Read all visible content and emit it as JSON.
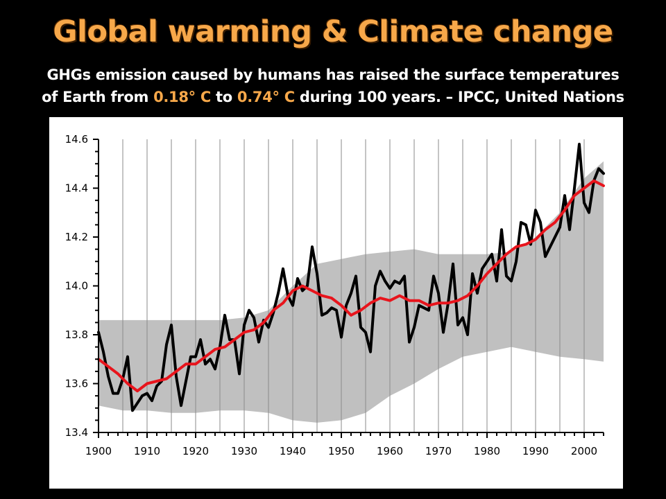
{
  "slide": {
    "title": "Global warming & Climate change",
    "subtitle_line1": "GHGs  emission caused by humans has raised the surface temperatures",
    "subtitle_line2_a": "of Earth from ",
    "subtitle_line2_v1": "0.18° C",
    "subtitle_line2_b": " to ",
    "subtitle_line2_v2": "0.74° C",
    "subtitle_line2_c": " during 100 years.  – IPCC, United Nations",
    "title_color": "#f7a84a",
    "background_color": "#000000"
  },
  "chart_data": {
    "type": "line",
    "title": "",
    "xlabel": "",
    "ylabel": "",
    "xlim": [
      1900,
      2004
    ],
    "ylim": [
      13.4,
      14.6
    ],
    "grid": true,
    "x_ticks": [
      1900,
      1910,
      1920,
      1930,
      1940,
      1950,
      1960,
      1970,
      1980,
      1990,
      2000
    ],
    "y_ticks": [
      13.4,
      13.6,
      13.8,
      14.0,
      14.2,
      14.4,
      14.6
    ],
    "y_tick_labels": [
      "13.4",
      "13.6",
      "13.8",
      "14.0",
      "14.2",
      "14.4",
      "14.6"
    ],
    "colors": {
      "annual": "#000000",
      "smoothed": "#e8141c",
      "band": "#c0c0c0"
    },
    "band": {
      "x": [
        1900,
        1905,
        1910,
        1915,
        1920,
        1925,
        1930,
        1935,
        1940,
        1945,
        1950,
        1955,
        1960,
        1965,
        1970,
        1975,
        1980,
        1985,
        1990,
        1995,
        2000,
        2004
      ],
      "upper": [
        13.86,
        13.86,
        13.86,
        13.86,
        13.86,
        13.86,
        13.87,
        13.9,
        14.0,
        14.09,
        14.11,
        14.13,
        14.14,
        14.15,
        14.13,
        14.13,
        14.13,
        14.14,
        14.2,
        14.3,
        14.44,
        14.51
      ],
      "lower": [
        13.51,
        13.49,
        13.49,
        13.48,
        13.48,
        13.49,
        13.49,
        13.48,
        13.45,
        13.44,
        13.45,
        13.48,
        13.55,
        13.6,
        13.66,
        13.71,
        13.73,
        13.75,
        13.73,
        13.71,
        13.7,
        13.69
      ]
    },
    "series": [
      {
        "kind": "annual",
        "x": [
          1900,
          1901,
          1902,
          1903,
          1904,
          1905,
          1906,
          1907,
          1908,
          1909,
          1910,
          1911,
          1912,
          1913,
          1914,
          1915,
          1916,
          1917,
          1918,
          1919,
          1920,
          1921,
          1922,
          1923,
          1924,
          1925,
          1926,
          1927,
          1928,
          1929,
          1930,
          1931,
          1932,
          1933,
          1934,
          1935,
          1936,
          1937,
          1938,
          1939,
          1940,
          1941,
          1942,
          1943,
          1944,
          1945,
          1946,
          1947,
          1948,
          1949,
          1950,
          1951,
          1952,
          1953,
          1954,
          1955,
          1956,
          1957,
          1958,
          1959,
          1960,
          1961,
          1962,
          1963,
          1964,
          1965,
          1966,
          1967,
          1968,
          1969,
          1970,
          1971,
          1972,
          1973,
          1974,
          1975,
          1976,
          1977,
          1978,
          1979,
          1980,
          1981,
          1982,
          1983,
          1984,
          1985,
          1986,
          1987,
          1988,
          1989,
          1990,
          1991,
          1992,
          1993,
          1994,
          1995,
          1996,
          1997,
          1998,
          1999,
          2000,
          2001,
          2002,
          2003,
          2004
        ],
        "values": [
          13.81,
          13.73,
          13.63,
          13.56,
          13.56,
          13.62,
          13.71,
          13.49,
          13.52,
          13.55,
          13.56,
          13.53,
          13.59,
          13.61,
          13.76,
          13.84,
          13.63,
          13.51,
          13.61,
          13.71,
          13.71,
          13.78,
          13.68,
          13.7,
          13.66,
          13.75,
          13.88,
          13.78,
          13.78,
          13.64,
          13.84,
          13.9,
          13.87,
          13.77,
          13.86,
          13.83,
          13.89,
          13.97,
          14.07,
          13.96,
          13.92,
          14.03,
          13.98,
          14.0,
          14.16,
          14.05,
          13.88,
          13.89,
          13.91,
          13.9,
          13.79,
          13.92,
          13.97,
          14.04,
          13.83,
          13.81,
          13.73,
          14.0,
          14.06,
          14.02,
          13.99,
          14.02,
          14.01,
          14.04,
          13.77,
          13.83,
          13.92,
          13.91,
          13.9,
          14.04,
          13.97,
          13.81,
          13.93,
          14.09,
          13.84,
          13.87,
          13.8,
          14.05,
          13.97,
          14.07,
          14.1,
          14.13,
          14.02,
          14.23,
          14.04,
          14.02,
          14.1,
          14.26,
          14.25,
          14.17,
          14.31,
          14.26,
          14.12,
          14.16,
          14.2,
          14.24,
          14.37,
          14.23,
          14.4,
          14.58,
          14.34,
          14.3,
          14.43,
          14.48,
          14.46
        ]
      },
      {
        "kind": "smoothed",
        "x": [
          1900,
          1902,
          1904,
          1906,
          1908,
          1910,
          1912,
          1914,
          1916,
          1918,
          1920,
          1922,
          1924,
          1926,
          1928,
          1930,
          1932,
          1934,
          1936,
          1938,
          1940,
          1942,
          1944,
          1946,
          1948,
          1950,
          1952,
          1954,
          1956,
          1958,
          1960,
          1962,
          1964,
          1966,
          1968,
          1970,
          1972,
          1974,
          1976,
          1978,
          1980,
          1982,
          1984,
          1986,
          1988,
          1990,
          1992,
          1994,
          1996,
          1998,
          2000,
          2002,
          2004
        ],
        "values": [
          13.7,
          13.67,
          13.64,
          13.6,
          13.57,
          13.6,
          13.61,
          13.62,
          13.65,
          13.68,
          13.68,
          13.71,
          13.74,
          13.75,
          13.78,
          13.81,
          13.82,
          13.85,
          13.9,
          13.93,
          13.98,
          14.0,
          13.98,
          13.96,
          13.95,
          13.92,
          13.88,
          13.9,
          13.93,
          13.95,
          13.94,
          13.96,
          13.94,
          13.94,
          13.92,
          13.93,
          13.93,
          13.94,
          13.96,
          14.0,
          14.05,
          14.09,
          14.13,
          14.16,
          14.17,
          14.19,
          14.23,
          14.26,
          14.31,
          14.37,
          14.4,
          14.43,
          14.41
        ]
      }
    ]
  }
}
